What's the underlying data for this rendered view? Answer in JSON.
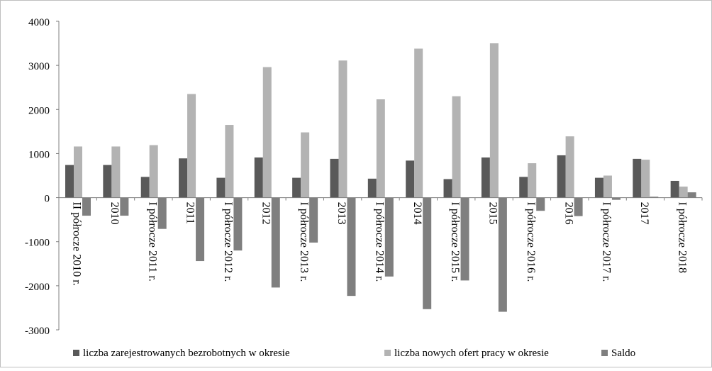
{
  "chart_data": {
    "type": "bar",
    "categories": [
      "II półrocze 2010 r.",
      "2010",
      "I półrocze 2011 r.",
      "2011",
      "I półrocze 2012 r.",
      "2012",
      "I półrocze 2013 r.",
      "2013",
      "I półrocze 2014 r.",
      "2014",
      "I półrocze 2015 r.",
      "2015",
      "I półrocze 2016 r.",
      "2016",
      "I półrocze 2017 r.",
      "2017",
      "I półrocze 2018"
    ],
    "series": [
      {
        "name": "liczba zarejestrowanych bezrobotnych w okresie",
        "color": "#595959",
        "values": [
          740,
          740,
          470,
          890,
          450,
          910,
          450,
          880,
          430,
          840,
          420,
          910,
          470,
          960,
          450,
          880,
          380
        ]
      },
      {
        "name": "liczba nowych ofert pracy w okresie",
        "color": "#b3b3b3",
        "values": [
          1160,
          1160,
          1190,
          2350,
          1650,
          2960,
          1480,
          3110,
          2230,
          3380,
          2300,
          3500,
          780,
          1390,
          500,
          860,
          250
        ]
      },
      {
        "name": "Saldo",
        "color": "#7f7f7f",
        "values": [
          -410,
          -410,
          -710,
          -1440,
          -1200,
          -2040,
          -1020,
          -2230,
          -1790,
          -2530,
          -1880,
          -2590,
          -300,
          -420,
          -50,
          20,
          120
        ]
      }
    ],
    "ylim": [
      -3000,
      4000
    ],
    "yticks": [
      "4000",
      "3000",
      "2000",
      "1000",
      "0",
      "-1000",
      "-2000",
      "-3000"
    ],
    "legend_position": "bottom",
    "grid": false
  }
}
